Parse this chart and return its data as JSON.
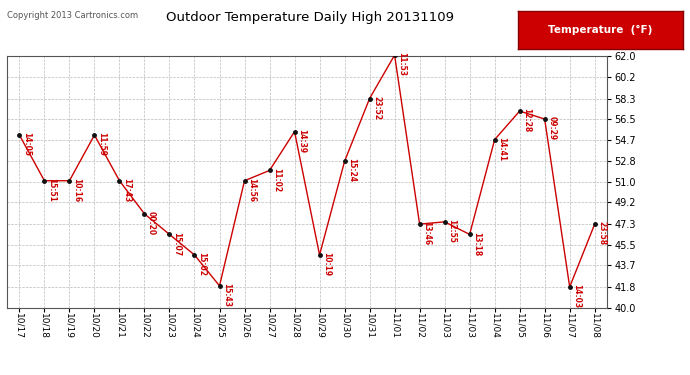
{
  "title": "Outdoor Temperature Daily High 20131109",
  "copyright": "Copyright 2013 Cartronics.com",
  "legend_label": "Temperature  (°F)",
  "background_color": "#ffffff",
  "line_color": "#cc0000",
  "marker_color": "#111111",
  "grid_color": "#bbbbbb",
  "x_labels": [
    "10/17",
    "10/18",
    "10/19",
    "10/20",
    "10/21",
    "10/22",
    "10/23",
    "10/24",
    "10/25",
    "10/26",
    "10/27",
    "10/28",
    "10/29",
    "10/30",
    "10/31",
    "11/01",
    "11/02",
    "11/03",
    "11/03",
    "11/04",
    "11/05",
    "11/06",
    "11/07",
    "11/08"
  ],
  "y_values": [
    55.1,
    51.1,
    51.1,
    55.1,
    51.1,
    48.2,
    46.4,
    44.6,
    41.9,
    51.1,
    52.0,
    55.4,
    44.6,
    52.8,
    58.3,
    62.1,
    47.3,
    47.5,
    46.4,
    54.7,
    57.2,
    56.5,
    41.8,
    47.3
  ],
  "annotations": [
    "14:05",
    "15:51",
    "10:16",
    "11:59",
    "17:43",
    "00:20",
    "15:07",
    "15:02",
    "15:43",
    "14:56",
    "11:02",
    "14:39",
    "10:19",
    "15:24",
    "23:52",
    "11:53",
    "13:46",
    "12:55",
    "13:18",
    "14:41",
    "12:28",
    "09:29",
    "14:03",
    "23:58"
  ],
  "yticks": [
    40.0,
    41.8,
    43.7,
    45.5,
    47.3,
    49.2,
    51.0,
    52.8,
    54.7,
    56.5,
    58.3,
    60.2,
    62.0
  ],
  "ylim": [
    40.0,
    62.0
  ]
}
